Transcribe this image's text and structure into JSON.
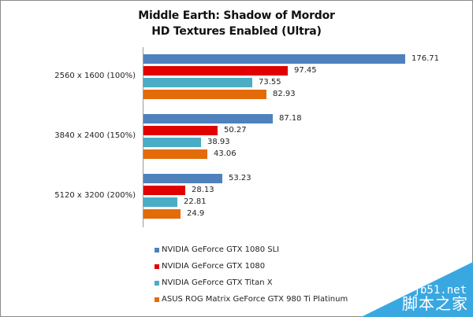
{
  "chart_data": {
    "type": "bar",
    "orientation": "horizontal",
    "title": "Middle Earth: Shadow of Mordor",
    "subtitle": "HD Textures Enabled (Ultra)",
    "xlabel": "",
    "ylabel": "",
    "grid": false,
    "legend_position": "bottom",
    "categories": [
      "2560 x 1600 (100%)",
      "3840 x 2400 (150%)",
      "5120 x 3200 (200%)"
    ],
    "series": [
      {
        "name": "NVIDIA GeForce GTX 1080 SLI",
        "color": "#4f81bd",
        "values": [
          176.71,
          87.18,
          53.23
        ]
      },
      {
        "name": "NVIDIA GeForce GTX 1080",
        "color": "#e00000",
        "values": [
          97.45,
          50.27,
          28.13
        ]
      },
      {
        "name": "NVIDIA GeForce GTX Titan X",
        "color": "#4bacc6",
        "values": [
          73.55,
          38.93,
          22.81
        ]
      },
      {
        "name": "ASUS ROG Matrix GeForce GTX 980 Ti Platinum",
        "color": "#e36c0a",
        "values": [
          82.93,
          43.06,
          24.9
        ]
      }
    ]
  },
  "labels": {
    "values": [
      [
        "176.71",
        "87.18",
        "53.23"
      ],
      [
        "97.45",
        "50.27",
        "28.13"
      ],
      [
        "73.55",
        "38.93",
        "22.81"
      ],
      [
        "82.93",
        "43.06",
        "24.9"
      ]
    ]
  },
  "watermark": {
    "line1": "jb51.net",
    "line2": "脚本之家",
    "color": "#3aa8e0"
  }
}
